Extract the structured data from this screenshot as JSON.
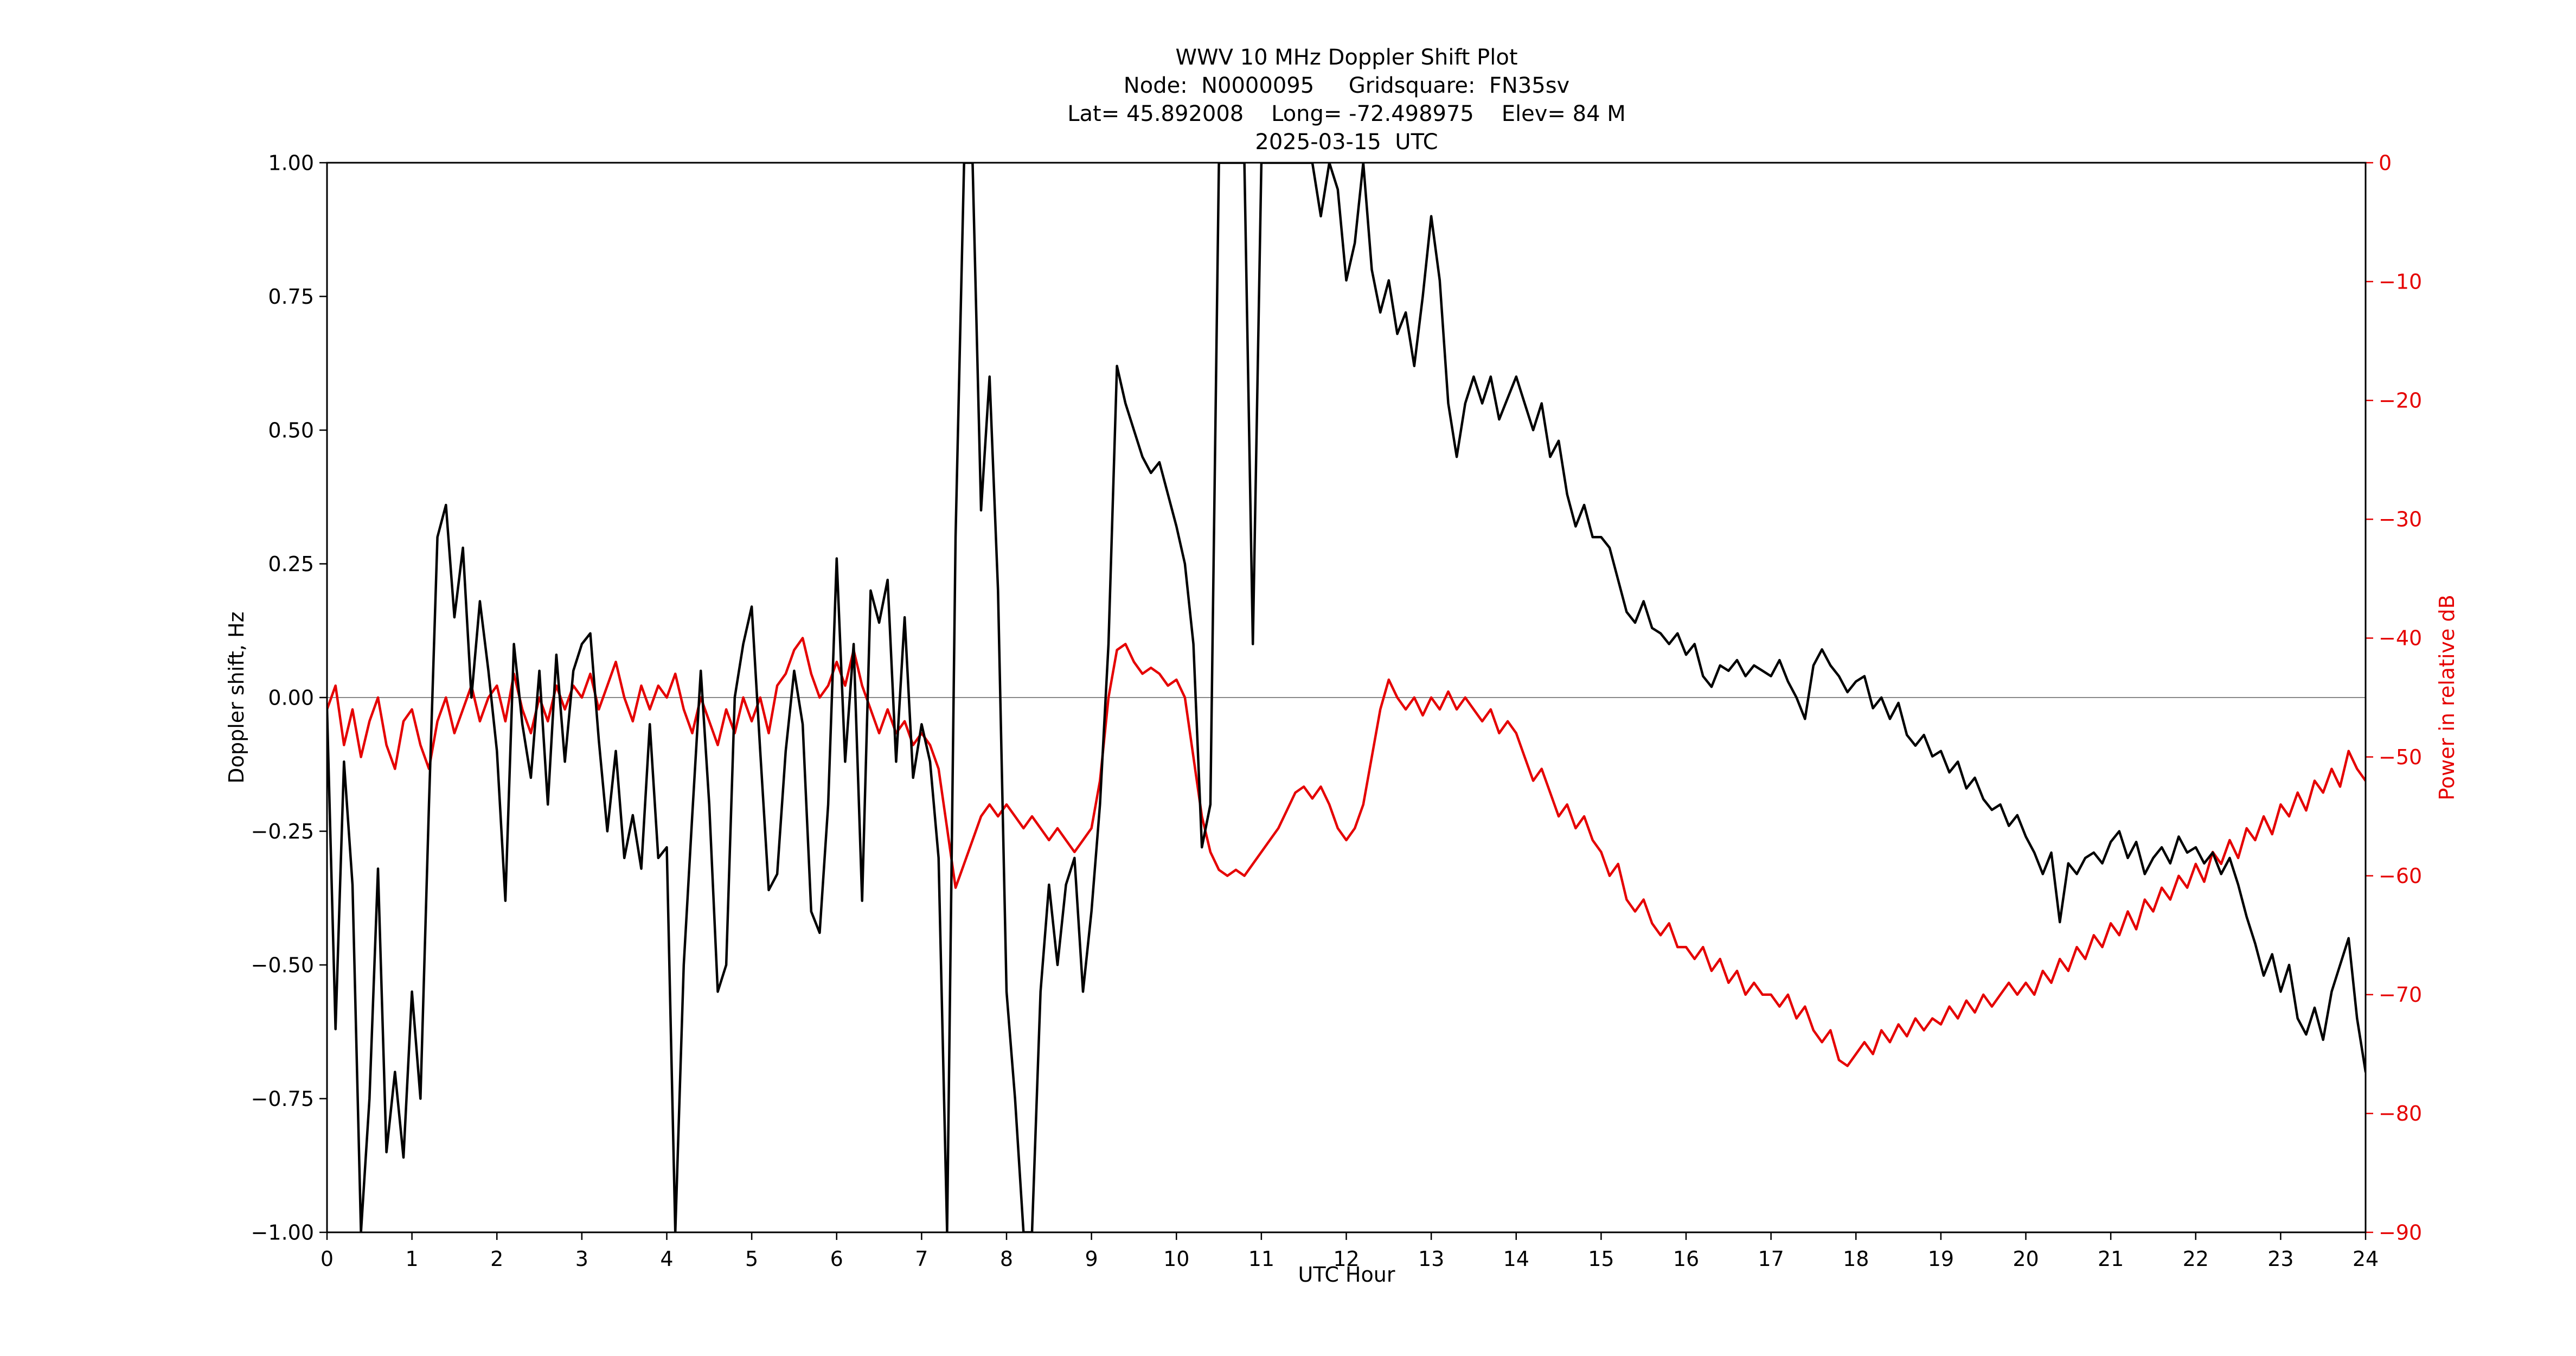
{
  "chart_data": {
    "type": "line",
    "title": "WWV 10 MHz Doppler Shift Plot",
    "subtitle_node": "Node:  N0000095     Gridsquare:  FN35sv",
    "subtitle_location": "Lat= 45.892008    Long= -72.498975    Elev= 84 M",
    "subtitle_date": "2025-03-15  UTC",
    "xlabel": "UTC Hour",
    "ylabel": "Doppler shift, Hz",
    "y2label": "Power in relative dB",
    "xlim": [
      0,
      24
    ],
    "ylim": [
      -1.0,
      1.0
    ],
    "y2lim": [
      -90,
      0
    ],
    "grid": false,
    "legend": "none",
    "colors": {
      "doppler": "#000000",
      "power": "#e50000",
      "zero_line": "#888888",
      "frame": "#000000"
    },
    "x_ticks": [
      {
        "v": 0,
        "label": "0"
      },
      {
        "v": 1,
        "label": "1"
      },
      {
        "v": 2,
        "label": "2"
      },
      {
        "v": 3,
        "label": "3"
      },
      {
        "v": 4,
        "label": "4"
      },
      {
        "v": 5,
        "label": "5"
      },
      {
        "v": 6,
        "label": "6"
      },
      {
        "v": 7,
        "label": "7"
      },
      {
        "v": 8,
        "label": "8"
      },
      {
        "v": 9,
        "label": "9"
      },
      {
        "v": 10,
        "label": "10"
      },
      {
        "v": 11,
        "label": "11"
      },
      {
        "v": 12,
        "label": "12"
      },
      {
        "v": 13,
        "label": "13"
      },
      {
        "v": 14,
        "label": "14"
      },
      {
        "v": 15,
        "label": "15"
      },
      {
        "v": 16,
        "label": "16"
      },
      {
        "v": 17,
        "label": "17"
      },
      {
        "v": 18,
        "label": "18"
      },
      {
        "v": 19,
        "label": "19"
      },
      {
        "v": 20,
        "label": "20"
      },
      {
        "v": 21,
        "label": "21"
      },
      {
        "v": 22,
        "label": "22"
      },
      {
        "v": 23,
        "label": "23"
      },
      {
        "v": 24,
        "label": "24"
      }
    ],
    "y_ticks": [
      {
        "v": 1.0,
        "label": "1.00"
      },
      {
        "v": 0.75,
        "label": "0.75"
      },
      {
        "v": 0.5,
        "label": "0.50"
      },
      {
        "v": 0.25,
        "label": "0.25"
      },
      {
        "v": 0.0,
        "label": "0.00"
      },
      {
        "v": -0.25,
        "label": "−0.25"
      },
      {
        "v": -0.5,
        "label": "−0.50"
      },
      {
        "v": -0.75,
        "label": "−0.75"
      },
      {
        "v": -1.0,
        "label": "−1.00"
      }
    ],
    "y2_ticks": [
      {
        "v": 0,
        "label": "0"
      },
      {
        "v": -10,
        "label": "−10"
      },
      {
        "v": -20,
        "label": "−20"
      },
      {
        "v": -30,
        "label": "−30"
      },
      {
        "v": -40,
        "label": "−40"
      },
      {
        "v": -50,
        "label": "−50"
      },
      {
        "v": -60,
        "label": "−60"
      },
      {
        "v": -70,
        "label": "−70"
      },
      {
        "v": -80,
        "label": "−80"
      },
      {
        "v": -90,
        "label": "−90"
      }
    ],
    "x_start": 0,
    "x_step": 0.1,
    "series": [
      {
        "name": "Doppler shift, Hz",
        "axis": "left",
        "color": "#000000",
        "values": [
          -0.02,
          -0.62,
          -0.12,
          -0.35,
          -1.0,
          -0.75,
          -0.32,
          -0.85,
          -0.7,
          -0.86,
          -0.55,
          -0.75,
          -0.2,
          0.3,
          0.36,
          0.15,
          0.28,
          0.0,
          0.18,
          0.05,
          -0.1,
          -0.38,
          0.1,
          -0.05,
          -0.15,
          0.05,
          -0.2,
          0.08,
          -0.12,
          0.05,
          0.1,
          0.12,
          -0.08,
          -0.25,
          -0.1,
          -0.3,
          -0.22,
          -0.32,
          -0.05,
          -0.3,
          -0.28,
          -1.0,
          -0.5,
          -0.22,
          0.05,
          -0.2,
          -0.55,
          -0.5,
          0.0,
          0.1,
          0.17,
          -0.1,
          -0.36,
          -0.33,
          -0.1,
          0.05,
          -0.05,
          -0.4,
          -0.44,
          -0.2,
          0.26,
          -0.12,
          0.1,
          -0.38,
          0.2,
          0.14,
          0.22,
          -0.12,
          0.15,
          -0.15,
          -0.05,
          -0.12,
          -0.3,
          -1.0,
          0.3,
          1.0,
          1.0,
          0.35,
          0.6,
          0.2,
          -0.55,
          -0.75,
          -1.0,
          -1.0,
          -0.55,
          -0.35,
          -0.5,
          -0.35,
          -0.3,
          -0.55,
          -0.4,
          -0.2,
          0.1,
          0.62,
          0.55,
          0.5,
          0.45,
          0.42,
          0.44,
          0.38,
          0.32,
          0.25,
          0.1,
          -0.28,
          -0.2,
          1.0,
          1.0,
          1.0,
          1.0,
          0.1,
          1.0,
          1.0,
          1.0,
          1.0,
          1.0,
          1.0,
          1.0,
          0.9,
          1.0,
          0.95,
          0.78,
          0.85,
          1.0,
          0.8,
          0.72,
          0.78,
          0.68,
          0.72,
          0.62,
          0.75,
          0.9,
          0.78,
          0.55,
          0.45,
          0.55,
          0.6,
          0.55,
          0.6,
          0.52,
          0.56,
          0.6,
          0.55,
          0.5,
          0.55,
          0.45,
          0.48,
          0.38,
          0.32,
          0.36,
          0.3,
          0.3,
          0.28,
          0.22,
          0.16,
          0.14,
          0.18,
          0.13,
          0.12,
          0.1,
          0.12,
          0.08,
          0.1,
          0.04,
          0.02,
          0.06,
          0.05,
          0.07,
          0.04,
          0.06,
          0.05,
          0.04,
          0.07,
          0.03,
          0.0,
          -0.04,
          0.06,
          0.09,
          0.06,
          0.04,
          0.01,
          0.03,
          0.04,
          -0.02,
          0.0,
          -0.04,
          -0.01,
          -0.07,
          -0.09,
          -0.07,
          -0.11,
          -0.1,
          -0.14,
          -0.12,
          -0.17,
          -0.15,
          -0.19,
          -0.21,
          -0.2,
          -0.24,
          -0.22,
          -0.26,
          -0.29,
          -0.33,
          -0.29,
          -0.42,
          -0.31,
          -0.33,
          -0.3,
          -0.29,
          -0.31,
          -0.27,
          -0.25,
          -0.3,
          -0.27,
          -0.33,
          -0.3,
          -0.28,
          -0.31,
          -0.26,
          -0.29,
          -0.28,
          -0.31,
          -0.29,
          -0.33,
          -0.3,
          -0.35,
          -0.41,
          -0.46,
          -0.52,
          -0.48,
          -0.55,
          -0.5,
          -0.6,
          -0.63,
          -0.58,
          -0.64,
          -0.55,
          -0.5,
          -0.45,
          -0.6,
          -0.7
        ]
      },
      {
        "name": "Power in relative dB",
        "axis": "right",
        "color": "#e50000",
        "values": [
          -46,
          -44,
          -49,
          -46,
          -50,
          -47,
          -45,
          -49,
          -51,
          -47,
          -46,
          -49,
          -51,
          -47,
          -45,
          -48,
          -46,
          -44,
          -47,
          -45,
          -44,
          -47,
          -43,
          -46,
          -48,
          -45,
          -47,
          -44,
          -46,
          -44,
          -45,
          -43,
          -46,
          -44,
          -42,
          -45,
          -47,
          -44,
          -46,
          -44,
          -45,
          -43,
          -46,
          -48,
          -45,
          -47,
          -49,
          -46,
          -48,
          -45,
          -47,
          -45,
          -48,
          -44,
          -43,
          -41,
          -40,
          -43,
          -45,
          -44,
          -42,
          -44,
          -41,
          -44,
          -46,
          -48,
          -46,
          -48,
          -47,
          -49,
          -48,
          -49,
          -51,
          -56,
          -61,
          -59,
          -57,
          -55,
          -54,
          -55,
          -54,
          -55,
          -56,
          -55,
          -56,
          -57,
          -56,
          -57,
          -58,
          -57,
          -56,
          -52,
          -45,
          -41,
          -40.5,
          -42,
          -43,
          -42.5,
          -43,
          -44,
          -43.5,
          -45,
          -50,
          -55,
          -58,
          -59.5,
          -60,
          -59.5,
          -60,
          -59,
          -58,
          -57,
          -56,
          -54.5,
          -53,
          -52.5,
          -53.5,
          -52.5,
          -54,
          -56,
          -57,
          -56,
          -54,
          -50,
          -46,
          -43.5,
          -45,
          -46,
          -45,
          -46.5,
          -45,
          -46,
          -44.5,
          -46,
          -45,
          -46,
          -47,
          -46,
          -48,
          -47,
          -48,
          -50,
          -52,
          -51,
          -53,
          -55,
          -54,
          -56,
          -55,
          -57,
          -58,
          -60,
          -59,
          -62,
          -63,
          -62,
          -64,
          -65,
          -64,
          -66,
          -66,
          -67,
          -66,
          -68,
          -67,
          -69,
          -68,
          -70,
          -69,
          -70,
          -70,
          -71,
          -70,
          -72,
          -71,
          -73,
          -74,
          -73,
          -75.5,
          -76,
          -75,
          -74,
          -75,
          -73,
          -74,
          -72.5,
          -73.5,
          -72,
          -73,
          -72,
          -72.5,
          -71,
          -72,
          -70.5,
          -71.5,
          -70,
          -71,
          -70,
          -69,
          -70,
          -69,
          -70,
          -68,
          -69,
          -67,
          -68,
          -66,
          -67,
          -65,
          -66,
          -64,
          -65,
          -63,
          -64.5,
          -62,
          -63,
          -61,
          -62,
          -60,
          -61,
          -59,
          -60.5,
          -58,
          -59,
          -57,
          -58.5,
          -56,
          -57,
          -55,
          -56.5,
          -54,
          -55,
          -53,
          -54.5,
          -52,
          -53,
          -51,
          -52.5,
          -49.5,
          -51,
          -52
        ]
      }
    ]
  }
}
